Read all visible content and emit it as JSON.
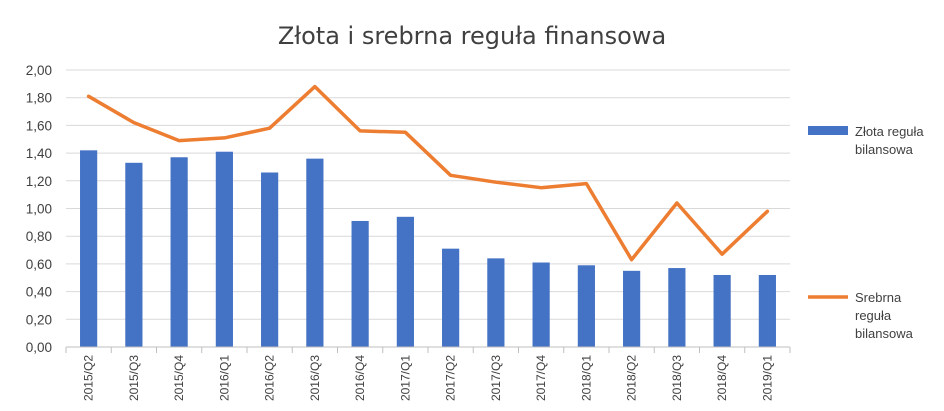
{
  "chart_data": {
    "type": "bar",
    "title": "Złota i srebrna reguła finansowa",
    "categories": [
      "2015/Q2",
      "2015/Q3",
      "2015/Q4",
      "2016/Q1",
      "2016/Q2",
      "2016/Q3",
      "2016/Q4",
      "2017/Q1",
      "2017/Q2",
      "2017/Q3",
      "2017/Q4",
      "2018/Q1",
      "2018/Q2",
      "2018/Q3",
      "2018/Q4",
      "2019/Q1"
    ],
    "ylim": [
      0,
      2.0
    ],
    "yticks": [
      "0,00",
      "0,20",
      "0,40",
      "0,60",
      "0,80",
      "1,00",
      "1,20",
      "1,40",
      "1,60",
      "1,80",
      "2,00"
    ],
    "grid": true,
    "legend_position": "right",
    "series": [
      {
        "name": "Złota reguła bilansowa",
        "legend_lines": [
          "Złota reguła",
          "bilansowa"
        ],
        "kind": "bar",
        "color": "#4472C4",
        "values": [
          1.42,
          1.33,
          1.37,
          1.41,
          1.26,
          1.36,
          0.91,
          0.94,
          0.71,
          0.64,
          0.61,
          0.59,
          0.55,
          0.57,
          0.52,
          0.52
        ]
      },
      {
        "name": "Srebrna reguła bilansowa",
        "legend_lines": [
          "Srebrna",
          "reguła",
          "bilansowa"
        ],
        "kind": "line",
        "color": "#ED7D31",
        "values": [
          1.81,
          1.62,
          1.49,
          1.51,
          1.58,
          1.88,
          1.56,
          1.55,
          1.24,
          1.19,
          1.15,
          1.18,
          0.63,
          1.04,
          0.67,
          0.98
        ]
      }
    ]
  }
}
